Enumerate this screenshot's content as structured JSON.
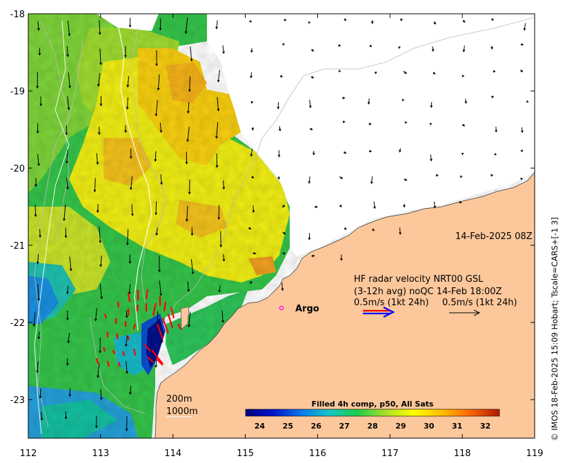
{
  "axes": {
    "x_ticks": [
      "112",
      "113",
      "114",
      "115",
      "116",
      "117",
      "118",
      "119"
    ],
    "y_ticks": [
      "-18",
      "-19",
      "-20",
      "-21",
      "-22",
      "-23"
    ],
    "x_range": [
      112,
      119
    ],
    "y_range": [
      -23.5,
      -18
    ]
  },
  "timestamp": "14-Feb-2025 08Z",
  "radar_legend": {
    "line1": "HF radar velocity  NRT00 GSL",
    "line2": "(3-12h avg) noQC 14-Feb 18:00Z",
    "scale_left": "0.5m/s (1kt 24h)",
    "scale_right": "0.5m/s (1kt 24h)"
  },
  "argo": {
    "label": "Argo",
    "lon": 115.48,
    "lat": -21.79
  },
  "isobaths": {
    "shallow": "200m",
    "deep": "1000m"
  },
  "colorbar": {
    "title": "Filled 4h comp, p50, All Sats",
    "ticks": [
      "24",
      "25",
      "26",
      "27",
      "28",
      "29",
      "30",
      "31",
      "32"
    ],
    "range": [
      23.5,
      32.5
    ]
  },
  "credit": "© IMOS 18-Feb-2025 15:09 Hobart; Tscale=CARS+[-1 3]",
  "colors": {
    "land": "#fbc79b",
    "radar_arrow_red": "#ff0000",
    "radar_arrow_blue": "#0000ff",
    "argo_marker": "#ff00ff"
  }
}
